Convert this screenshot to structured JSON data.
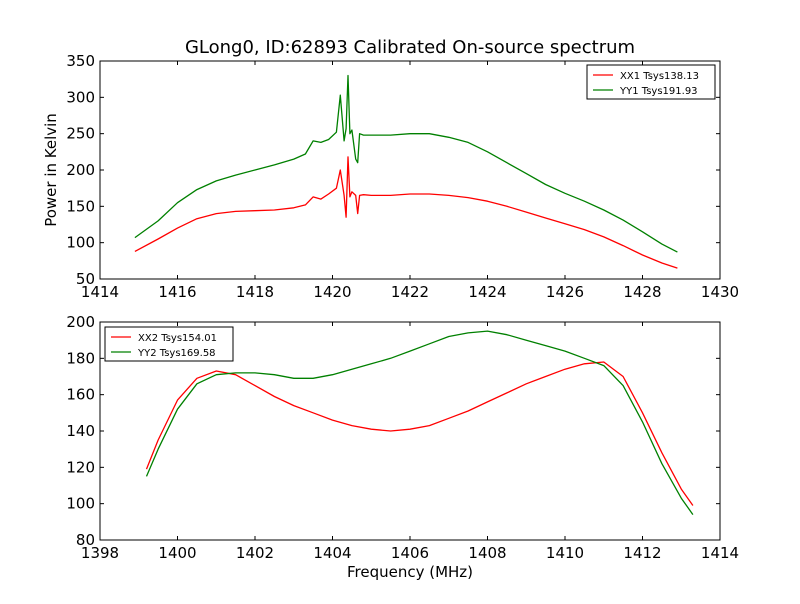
{
  "figure": {
    "title": "GLong0, ID:62893 Calibrated On-source spectrum",
    "ylabel": "Power in Kelvin",
    "xlabel": "Frequency (MHz)"
  },
  "chart_data": [
    {
      "type": "line",
      "title": "GLong0, ID:62893 Calibrated On-source spectrum",
      "xlabel": "",
      "ylabel": "Power in Kelvin",
      "xlim": [
        1414,
        1430
      ],
      "ylim": [
        50,
        350
      ],
      "xticks": [
        "1414",
        "1416",
        "1418",
        "1420",
        "1422",
        "1424",
        "1426",
        "1428",
        "1430"
      ],
      "yticks": [
        "50",
        "100",
        "150",
        "200",
        "250",
        "300",
        "350"
      ],
      "grid": false,
      "legend": "top-right",
      "series": [
        {
          "name": "XX1 Tsys138.13",
          "color": "#ff0000",
          "x": [
            1414.9,
            1415.5,
            1416.0,
            1416.5,
            1417.0,
            1417.5,
            1418.0,
            1418.5,
            1419.0,
            1419.3,
            1419.5,
            1419.7,
            1419.9,
            1420.1,
            1420.2,
            1420.3,
            1420.35,
            1420.4,
            1420.45,
            1420.5,
            1420.6,
            1420.65,
            1420.7,
            1420.8,
            1421.0,
            1421.5,
            1422.0,
            1422.5,
            1423.0,
            1423.5,
            1424.0,
            1424.5,
            1425.0,
            1425.5,
            1426.0,
            1426.5,
            1427.0,
            1427.5,
            1428.0,
            1428.5,
            1428.9
          ],
          "values": [
            88,
            105,
            120,
            133,
            140,
            143,
            144,
            145,
            148,
            152,
            163,
            160,
            167,
            175,
            200,
            165,
            135,
            218,
            163,
            170,
            165,
            140,
            165,
            166,
            165,
            165,
            167,
            167,
            165,
            162,
            157,
            150,
            142,
            134,
            126,
            118,
            108,
            96,
            83,
            72,
            65
          ]
        },
        {
          "name": "YY1 Tsys191.93",
          "color": "#008000",
          "x": [
            1414.9,
            1415.5,
            1416.0,
            1416.5,
            1417.0,
            1417.5,
            1418.0,
            1418.5,
            1419.0,
            1419.3,
            1419.5,
            1419.7,
            1419.9,
            1420.1,
            1420.2,
            1420.3,
            1420.35,
            1420.4,
            1420.45,
            1420.5,
            1420.6,
            1420.65,
            1420.7,
            1420.8,
            1421.0,
            1421.5,
            1422.0,
            1422.5,
            1423.0,
            1423.5,
            1424.0,
            1424.5,
            1425.0,
            1425.5,
            1426.0,
            1426.5,
            1427.0,
            1427.5,
            1428.0,
            1428.5,
            1428.9
          ],
          "values": [
            107,
            130,
            155,
            173,
            185,
            193,
            200,
            207,
            215,
            222,
            240,
            238,
            242,
            252,
            303,
            240,
            257,
            330,
            250,
            255,
            215,
            210,
            250,
            248,
            248,
            248,
            250,
            250,
            245,
            238,
            225,
            210,
            195,
            180,
            168,
            157,
            145,
            131,
            115,
            98,
            87
          ]
        }
      ]
    },
    {
      "type": "line",
      "title": "",
      "xlabel": "Frequency (MHz)",
      "ylabel": "",
      "xlim": [
        1398,
        1414
      ],
      "ylim": [
        80,
        200
      ],
      "xticks": [
        "1398",
        "1400",
        "1402",
        "1404",
        "1406",
        "1408",
        "1410",
        "1412",
        "1414"
      ],
      "yticks": [
        "80",
        "100",
        "120",
        "140",
        "160",
        "180",
        "200"
      ],
      "grid": false,
      "legend": "top-left",
      "series": [
        {
          "name": "XX2 Tsys154.01",
          "color": "#ff0000",
          "x": [
            1399.2,
            1399.5,
            1400.0,
            1400.5,
            1401.0,
            1401.5,
            1402.0,
            1402.5,
            1403.0,
            1403.5,
            1404.0,
            1404.5,
            1405.0,
            1405.5,
            1406.0,
            1406.5,
            1407.0,
            1407.5,
            1408.0,
            1408.5,
            1409.0,
            1409.5,
            1410.0,
            1410.5,
            1411.0,
            1411.5,
            1412.0,
            1412.5,
            1413.0,
            1413.3
          ],
          "values": [
            119,
            135,
            157,
            169,
            173,
            171,
            165,
            159,
            154,
            150,
            146,
            143,
            141,
            140,
            141,
            143,
            147,
            151,
            156,
            161,
            166,
            170,
            174,
            177,
            178,
            170,
            150,
            128,
            108,
            99
          ]
        },
        {
          "name": "YY2 Tsys169.58",
          "color": "#008000",
          "x": [
            1399.2,
            1399.5,
            1400.0,
            1400.5,
            1401.0,
            1401.5,
            1402.0,
            1402.5,
            1403.0,
            1403.5,
            1404.0,
            1404.5,
            1405.0,
            1405.5,
            1406.0,
            1406.5,
            1407.0,
            1407.5,
            1408.0,
            1408.5,
            1409.0,
            1409.5,
            1410.0,
            1410.5,
            1411.0,
            1411.5,
            1412.0,
            1412.5,
            1413.0,
            1413.3
          ],
          "values": [
            115,
            130,
            152,
            166,
            171,
            172,
            172,
            171,
            169,
            169,
            171,
            174,
            177,
            180,
            184,
            188,
            192,
            194,
            195,
            193,
            190,
            187,
            184,
            180,
            176,
            165,
            145,
            122,
            103,
            94
          ]
        }
      ]
    }
  ]
}
